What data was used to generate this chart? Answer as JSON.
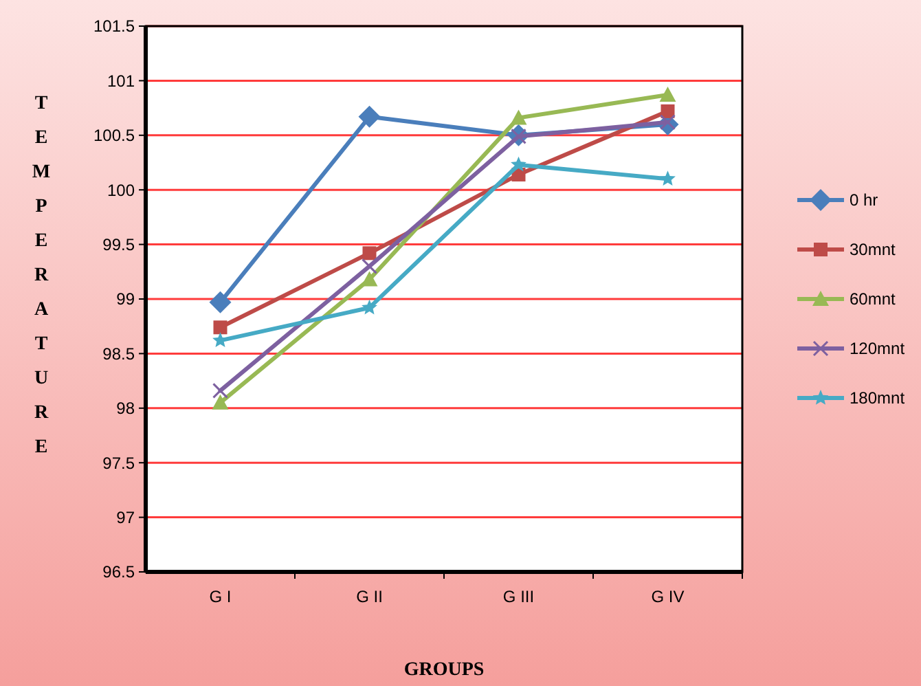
{
  "chart_data": {
    "type": "line",
    "xlabel": "GROUPS",
    "ylabel": "TEMPERATURE",
    "categories": [
      "G I",
      "G II",
      "G III",
      "G IV"
    ],
    "ylim": [
      96.5,
      101.5
    ],
    "yticks": [
      96.5,
      97,
      97.5,
      98,
      98.5,
      99,
      99.5,
      100,
      100.5,
      101,
      101.5
    ],
    "grid": "y",
    "legend": "right",
    "series": [
      {
        "name": "0 hr",
        "color": "#4a7ebb",
        "marker": "diamond",
        "values": [
          98.97,
          100.67,
          100.5,
          100.6
        ]
      },
      {
        "name": "30mnt",
        "color": "#be4b48",
        "marker": "square",
        "values": [
          98.74,
          99.42,
          100.14,
          100.72
        ]
      },
      {
        "name": "60mnt",
        "color": "#98b954",
        "marker": "triangle",
        "values": [
          98.05,
          99.18,
          100.66,
          100.87
        ]
      },
      {
        "name": "120mnt",
        "color": "#7d60a0",
        "marker": "cross",
        "values": [
          98.16,
          99.3,
          100.49,
          100.62
        ]
      },
      {
        "name": "180mnt",
        "color": "#46aac5",
        "marker": "star",
        "values": [
          98.62,
          98.92,
          100.23,
          100.1
        ]
      }
    ]
  }
}
